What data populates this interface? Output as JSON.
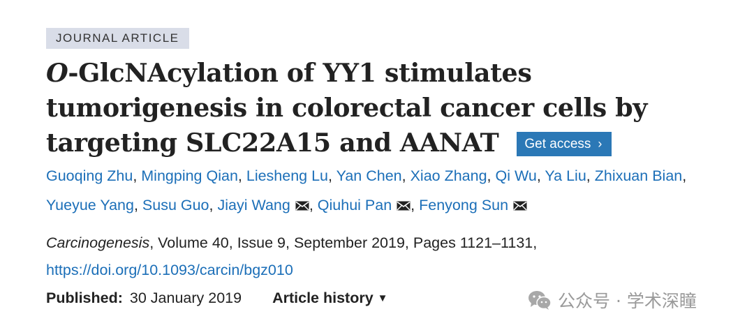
{
  "article": {
    "type_label": "JOURNAL ARTICLE",
    "title_italic": "O",
    "title_rest": "-GlcNAcylation of YY1 stimulates tumorigenesis in colorectal cancer cells by targeting SLC22A15 and AANAT",
    "access_button": {
      "label": "Get access",
      "icon": "chevron-right-icon"
    },
    "authors": [
      {
        "name": "Guoqing Zhu",
        "corresponding": false
      },
      {
        "name": "Mingping Qian",
        "corresponding": false
      },
      {
        "name": "Liesheng Lu",
        "corresponding": false
      },
      {
        "name": "Yan Chen",
        "corresponding": false
      },
      {
        "name": "Xiao Zhang",
        "corresponding": false
      },
      {
        "name": "Qi Wu",
        "corresponding": false
      },
      {
        "name": "Ya Liu",
        "corresponding": false
      },
      {
        "name": "Zhixuan Bian",
        "corresponding": false
      },
      {
        "name": "Yueyue Yang",
        "corresponding": false
      },
      {
        "name": "Susu Guo",
        "corresponding": false
      },
      {
        "name": "Jiayi Wang",
        "corresponding": true
      },
      {
        "name": "Qiuhui Pan",
        "corresponding": true
      },
      {
        "name": "Fenyong Sun",
        "corresponding": true
      }
    ],
    "citation": {
      "journal": "Carcinogenesis",
      "details": ", Volume 40, Issue 9, September 2019, Pages 1121–1131,"
    },
    "doi": "https://doi.org/10.1093/carcin/bgz010",
    "published": {
      "label": "Published:",
      "date": "30 January 2019"
    },
    "history": {
      "label": "Article history",
      "icon": "caret-down-icon"
    }
  },
  "watermark": {
    "icon": "wechat-icon",
    "text": "公众号 · 学术深瞳"
  },
  "colors": {
    "link": "#1c6fb8",
    "button_bg": "#2b78b6",
    "tag_bg": "#d9dde8",
    "text": "#222222",
    "watermark": "#9a9a9a"
  }
}
